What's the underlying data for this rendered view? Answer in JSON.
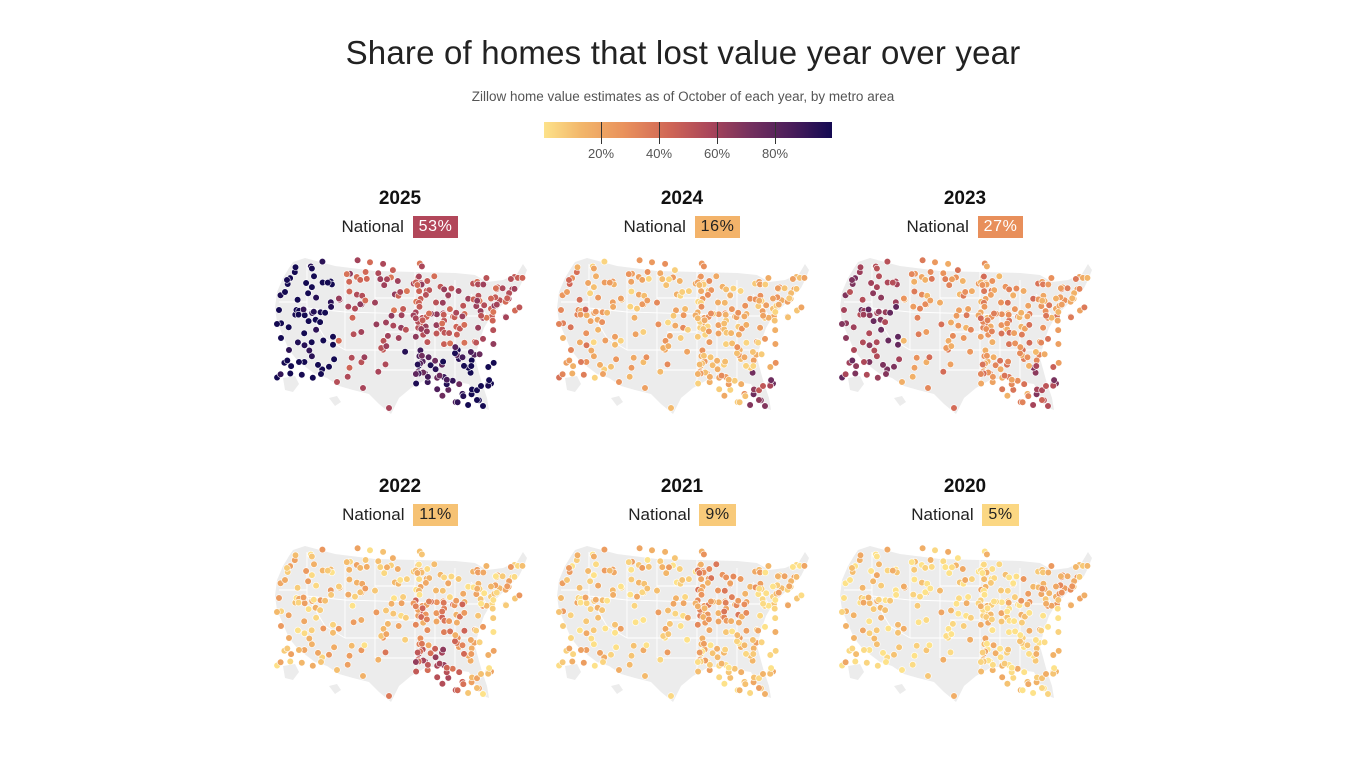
{
  "title": "Share of homes that lost value year over year",
  "subtitle": "Zillow home value estimates as of October of each year, by metro area",
  "legend": {
    "ticks": [
      "20%",
      "40%",
      "60%",
      "80%"
    ],
    "tick_values": [
      20,
      40,
      60,
      80
    ],
    "range": [
      0,
      100
    ],
    "colors": [
      "#fde28a",
      "#f2b66a",
      "#e9915c",
      "#cf6556",
      "#a8455a",
      "#73305e",
      "#4a1d5b",
      "#140a52"
    ]
  },
  "national_label": "National",
  "panels": [
    {
      "year": "2025",
      "national": "53%",
      "national_value": 53,
      "badge_color": "#b2475a",
      "badge_text_color": "#ffffff"
    },
    {
      "year": "2024",
      "national": "16%",
      "national_value": 16,
      "badge_color": "#f3b36a",
      "badge_text_color": "#222222"
    },
    {
      "year": "2023",
      "national": "27%",
      "national_value": 27,
      "badge_color": "#e88f5b",
      "badge_text_color": "#ffffff"
    },
    {
      "year": "2022",
      "national": "11%",
      "national_value": 11,
      "badge_color": "#f6c274",
      "badge_text_color": "#222222"
    },
    {
      "year": "2021",
      "national": "9%",
      "national_value": 9,
      "badge_color": "#f8ca7a",
      "badge_text_color": "#222222"
    },
    {
      "year": "2020",
      "national": "5%",
      "national_value": 5,
      "badge_color": "#fbd783",
      "badge_text_color": "#222222"
    }
  ],
  "colors": {
    "land": "#ececec",
    "state_border": "#ffffff",
    "dot_stroke": "#ffffff"
  }
}
